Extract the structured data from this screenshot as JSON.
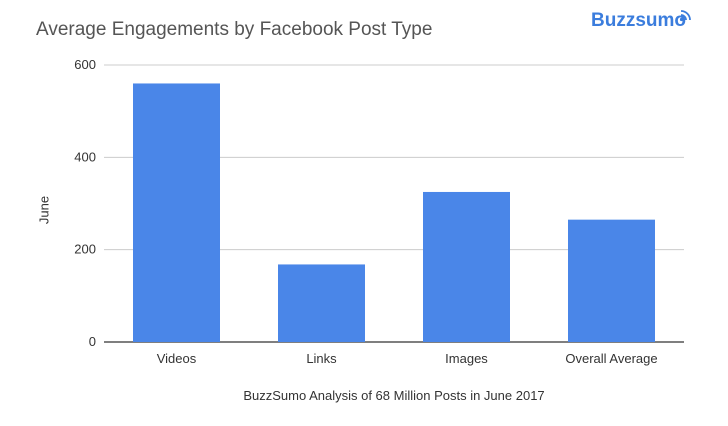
{
  "brand": {
    "name": "Buzzsumo",
    "icon": "signal-icon"
  },
  "colors": {
    "bar": "#4a86e8",
    "grid": "#cccccc",
    "axis": "#333333",
    "brand": "#3b7ddd"
  },
  "chart_data": {
    "type": "bar",
    "title": "Average Engagements by Facebook Post Type",
    "xlabel": "BuzzSumo Analysis of 68 Million Posts in June 2017",
    "ylabel": "June",
    "categories": [
      "Videos",
      "Links",
      "Images",
      "Overall Average"
    ],
    "series": [
      {
        "values": [
          560,
          168,
          325,
          265
        ]
      }
    ],
    "ylim": [
      0,
      600
    ],
    "yticks": [
      0,
      200,
      400,
      600
    ],
    "grid": true,
    "legend": "none"
  }
}
